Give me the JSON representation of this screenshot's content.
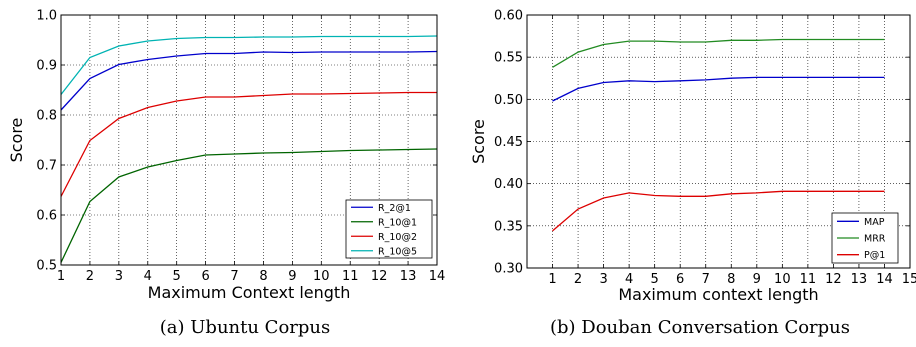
{
  "chart_data": [
    {
      "type": "line",
      "caption": "(a)  Ubuntu Corpus",
      "xlabel": "Maximum Context length",
      "ylabel": "Score",
      "xlim": [
        1,
        14
      ],
      "ylim": [
        0.5,
        1.0
      ],
      "x_ticks": [
        1,
        2,
        3,
        4,
        5,
        6,
        7,
        8,
        9,
        10,
        11,
        12,
        13,
        14
      ],
      "y_ticks": [
        0.5,
        0.6,
        0.7,
        0.8,
        0.9,
        1.0
      ],
      "y_tick_labels": [
        "0.5",
        "0.6",
        "0.7",
        "0.8",
        "0.9",
        "1.0"
      ],
      "grid": true,
      "legend_position": "lower-right",
      "x": [
        1,
        2,
        3,
        4,
        5,
        6,
        7,
        8,
        9,
        10,
        11,
        12,
        13,
        14
      ],
      "series": [
        {
          "name": "R_2@1",
          "color": "#0000cc",
          "values": [
            0.81,
            0.873,
            0.901,
            0.911,
            0.918,
            0.923,
            0.923,
            0.926,
            0.925,
            0.926,
            0.926,
            0.926,
            0.926,
            0.927
          ]
        },
        {
          "name": "R_10@1",
          "color": "#006400",
          "values": [
            0.505,
            0.627,
            0.676,
            0.696,
            0.709,
            0.72,
            0.722,
            0.724,
            0.725,
            0.727,
            0.729,
            0.73,
            0.731,
            0.732
          ]
        },
        {
          "name": "R_10@2",
          "color": "#dd0000",
          "values": [
            0.637,
            0.749,
            0.793,
            0.815,
            0.828,
            0.836,
            0.836,
            0.839,
            0.842,
            0.842,
            0.843,
            0.844,
            0.845,
            0.845
          ]
        },
        {
          "name": "R_10@5",
          "color": "#00b3b3",
          "values": [
            0.841,
            0.915,
            0.938,
            0.948,
            0.953,
            0.955,
            0.955,
            0.956,
            0.956,
            0.957,
            0.957,
            0.957,
            0.957,
            0.958
          ]
        }
      ]
    },
    {
      "type": "line",
      "caption": "(b)  Douban Conversation Corpus",
      "xlabel": "Maximum context length",
      "ylabel": "Score",
      "xlim": [
        0,
        15
      ],
      "ylim": [
        0.3,
        0.6
      ],
      "x_ticks": [
        1,
        2,
        3,
        4,
        5,
        6,
        7,
        8,
        9,
        10,
        11,
        12,
        13,
        14,
        15
      ],
      "y_ticks": [
        0.3,
        0.35,
        0.4,
        0.45,
        0.5,
        0.55,
        0.6
      ],
      "y_tick_labels": [
        "0.30",
        "0.35",
        "0.40",
        "0.45",
        "0.50",
        "0.55",
        "0.60"
      ],
      "grid": true,
      "legend_position": "lower-right",
      "x": [
        1,
        2,
        3,
        4,
        5,
        6,
        7,
        8,
        9,
        10,
        11,
        12,
        13,
        14
      ],
      "series": [
        {
          "name": "MAP",
          "color": "#0000cc",
          "values": [
            0.498,
            0.513,
            0.52,
            0.522,
            0.521,
            0.522,
            0.523,
            0.525,
            0.526,
            0.526,
            0.526,
            0.526,
            0.526,
            0.526
          ]
        },
        {
          "name": "MRR",
          "color": "#228b22",
          "values": [
            0.538,
            0.556,
            0.565,
            0.569,
            0.569,
            0.568,
            0.568,
            0.57,
            0.57,
            0.571,
            0.571,
            0.571,
            0.571,
            0.571
          ]
        },
        {
          "name": "P@1",
          "color": "#dd0000",
          "values": [
            0.344,
            0.37,
            0.383,
            0.389,
            0.386,
            0.385,
            0.385,
            0.388,
            0.389,
            0.391,
            0.391,
            0.391,
            0.391,
            0.391
          ]
        }
      ]
    }
  ]
}
